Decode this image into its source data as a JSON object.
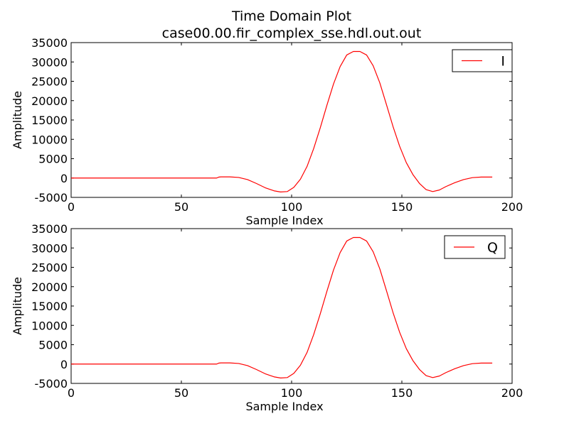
{
  "figure": {
    "title_line1": "Time Domain Plot",
    "title_line2": "case00.00.fir_complex_sse.hdl.out.out"
  },
  "chart_data": [
    {
      "type": "line",
      "title": "",
      "xlabel": "Sample Index",
      "ylabel": "Amplitude",
      "xlim": [
        0,
        200
      ],
      "ylim": [
        -5000,
        35000
      ],
      "xticks": [
        0,
        50,
        100,
        150,
        200
      ],
      "yticks": [
        -5000,
        0,
        5000,
        10000,
        15000,
        20000,
        25000,
        30000,
        35000
      ],
      "grid": false,
      "legend_position": "top-right",
      "series": [
        {
          "name": "I",
          "color": "#ff0000",
          "x": [
            0,
            66,
            67,
            68,
            72,
            76,
            80,
            84,
            88,
            92,
            95,
            98,
            101,
            104,
            107,
            110,
            113,
            116,
            119,
            122,
            125,
            128,
            131,
            134,
            137,
            140,
            143,
            146,
            149,
            152,
            155,
            158,
            161,
            164,
            167,
            170,
            174,
            178,
            182,
            186,
            191
          ],
          "y": [
            0,
            0,
            250,
            300,
            300,
            150,
            -400,
            -1400,
            -2500,
            -3300,
            -3600,
            -3500,
            -2400,
            -300,
            3000,
            7600,
            13000,
            18800,
            24300,
            28800,
            31800,
            32700,
            32700,
            31800,
            29000,
            24600,
            19000,
            13300,
            8200,
            4000,
            900,
            -1400,
            -3000,
            -3500,
            -3100,
            -2200,
            -1200,
            -400,
            100,
            250,
            250
          ]
        }
      ]
    },
    {
      "type": "line",
      "title": "",
      "xlabel": "Sample Index",
      "ylabel": "Amplitude",
      "xlim": [
        0,
        200
      ],
      "ylim": [
        -5000,
        35000
      ],
      "xticks": [
        0,
        50,
        100,
        150,
        200
      ],
      "yticks": [
        -5000,
        0,
        5000,
        10000,
        15000,
        20000,
        25000,
        30000,
        35000
      ],
      "grid": false,
      "legend_position": "top-right",
      "series": [
        {
          "name": "Q",
          "color": "#ff0000",
          "x": [
            0,
            66,
            67,
            68,
            72,
            76,
            80,
            84,
            88,
            92,
            95,
            98,
            101,
            104,
            107,
            110,
            113,
            116,
            119,
            122,
            125,
            128,
            131,
            134,
            137,
            140,
            143,
            146,
            149,
            152,
            155,
            158,
            161,
            164,
            167,
            170,
            174,
            178,
            182,
            186,
            191
          ],
          "y": [
            0,
            0,
            250,
            300,
            300,
            150,
            -400,
            -1400,
            -2500,
            -3300,
            -3600,
            -3500,
            -2400,
            -300,
            3000,
            7600,
            13000,
            18800,
            24300,
            28800,
            31800,
            32700,
            32700,
            31800,
            29000,
            24600,
            19000,
            13300,
            8200,
            4000,
            900,
            -1400,
            -3000,
            -3500,
            -3100,
            -2200,
            -1200,
            -400,
            100,
            250,
            250
          ]
        }
      ]
    }
  ]
}
